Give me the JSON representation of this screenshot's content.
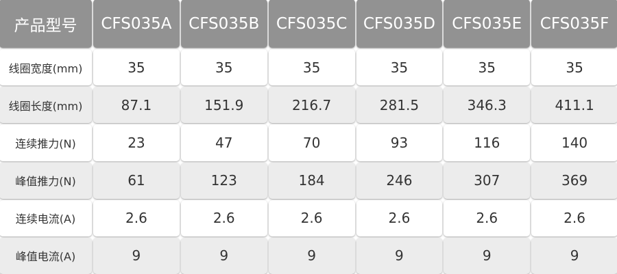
{
  "header": {
    "label": "产品型号",
    "models": [
      "CFS035A",
      "CFS035B",
      "CFS035C",
      "CFS035D",
      "CFS035E",
      "CFS035F"
    ]
  },
  "rows": [
    {
      "label": "线圈宽度(mm)",
      "values": [
        "35",
        "35",
        "35",
        "35",
        "35",
        "35"
      ]
    },
    {
      "label": "线圈长度(mm)",
      "values": [
        "87.1",
        "151.9",
        "216.7",
        "281.5",
        "346.3",
        "411.1"
      ]
    },
    {
      "label": "连续推力(N)",
      "values": [
        "23",
        "47",
        "70",
        "93",
        "116",
        "140"
      ]
    },
    {
      "label": "峰值推力(N)",
      "values": [
        "61",
        "123",
        "184",
        "246",
        "307",
        "369"
      ]
    },
    {
      "label": "连续电流(A)",
      "values": [
        "2.6",
        "2.6",
        "2.6",
        "2.6",
        "2.6",
        "2.6"
      ]
    },
    {
      "label": "峰值电流(A)",
      "values": [
        "9",
        "9",
        "9",
        "9",
        "9",
        "9"
      ]
    }
  ],
  "colors": {
    "header_bg": "#929292",
    "row_alt_bg": "#ececec"
  }
}
